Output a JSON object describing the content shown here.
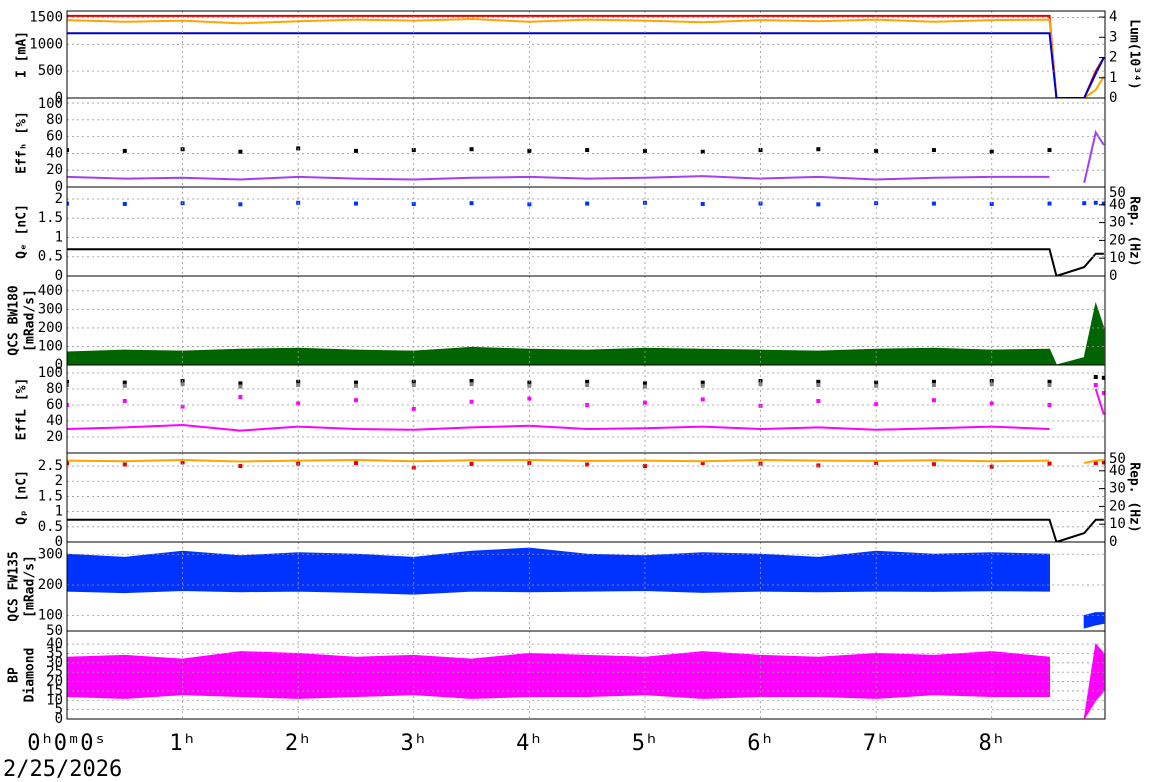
{
  "chart_data": [
    {
      "type": "line",
      "ylabel": [
        "I [mA]"
      ],
      "ylim": [
        0,
        1620
      ],
      "yticks": [
        0,
        500,
        1000,
        1500
      ],
      "y2label": [
        "Lum(10³⁴)"
      ],
      "y2lim": [
        0,
        4.3
      ],
      "y2ticks": [
        0,
        1,
        2,
        3,
        4
      ],
      "x": [
        0,
        0.5,
        1,
        1.5,
        2,
        2.5,
        3,
        3.5,
        4,
        4.5,
        5,
        5.5,
        6,
        6.5,
        7,
        7.5,
        8,
        8.5,
        8.56,
        8.8,
        8.9,
        8.97
      ],
      "series": [
        {
          "color": "#e00000",
          "style": "line",
          "values": [
            1530,
            1530,
            1530,
            1530,
            1530,
            1530,
            1530,
            1530,
            1530,
            1530,
            1530,
            1530,
            1530,
            1530,
            1530,
            1530,
            1530,
            1530,
            0,
            0,
            500,
            750
          ]
        },
        {
          "color": "#ffa500",
          "style": "line",
          "values": [
            1450,
            1420,
            1440,
            1390,
            1430,
            1460,
            1440,
            1470,
            1420,
            1460,
            1440,
            1410,
            1450,
            1430,
            1460,
            1420,
            1450,
            1460,
            0,
            0,
            150,
            400
          ]
        },
        {
          "color": "#0000cc",
          "style": "line",
          "axis": "y2",
          "values": [
            3.2,
            3.2,
            3.2,
            3.2,
            3.2,
            3.2,
            3.2,
            3.2,
            3.2,
            3.2,
            3.2,
            3.2,
            3.2,
            3.2,
            3.2,
            3.2,
            3.2,
            3.2,
            0,
            0,
            1.2,
            2.0
          ]
        }
      ]
    },
    {
      "type": "line",
      "ylabel": [
        "Effₕ [%]"
      ],
      "ylim": [
        0,
        106
      ],
      "yticks": [
        0,
        20,
        40,
        60,
        80,
        100
      ],
      "x": [
        0,
        0.5,
        1,
        1.5,
        2,
        2.5,
        3,
        3.5,
        4,
        4.5,
        5,
        5.5,
        6,
        6.5,
        7,
        7.5,
        8,
        8.5,
        8.56,
        8.8,
        8.9,
        8.97
      ],
      "series": [
        {
          "color": "#000000",
          "style": "dots",
          "values": [
            44,
            43,
            45,
            42,
            46,
            43,
            44,
            45,
            43,
            44,
            43,
            42,
            44,
            45,
            43,
            44,
            42,
            44,
            null,
            null,
            null,
            null
          ]
        },
        {
          "color": "#a040f0",
          "style": "line",
          "values": [
            12,
            10,
            11,
            9,
            12,
            10,
            9,
            11,
            12,
            10,
            11,
            13,
            10,
            12,
            9,
            11,
            12,
            12,
            null,
            5,
            65,
            50
          ]
        }
      ]
    },
    {
      "type": "line",
      "ylabel": [
        "Qₑ [nC]"
      ],
      "ylim": [
        0,
        2.31
      ],
      "yticks": [
        0,
        0.5,
        1,
        1.5,
        2
      ],
      "y2label": [
        "Rep. (Hz)"
      ],
      "y2lim": [
        0,
        50
      ],
      "y2ticks": [
        0,
        10,
        20,
        30,
        40,
        50
      ],
      "x": [
        0,
        0.5,
        1,
        1.5,
        2,
        2.5,
        3,
        3.5,
        4,
        4.5,
        5,
        5.5,
        6,
        6.5,
        7,
        7.5,
        8,
        8.5,
        8.56,
        8.8,
        8.9,
        8.97
      ],
      "series": [
        {
          "color": "#0033ff",
          "style": "dots",
          "values": [
            1.88,
            1.87,
            1.89,
            1.86,
            1.9,
            1.88,
            1.87,
            1.89,
            1.86,
            1.88,
            1.9,
            1.87,
            1.88,
            1.86,
            1.89,
            1.88,
            1.87,
            1.88,
            null,
            1.89,
            1.9,
            1.88
          ]
        },
        {
          "color": "#000000",
          "style": "line",
          "axis": "y2",
          "values": [
            15,
            15,
            15,
            15,
            15,
            15,
            15,
            15,
            15,
            15,
            15,
            15,
            15,
            15,
            15,
            15,
            15,
            15,
            0,
            5,
            12.5,
            12.5
          ]
        }
      ]
    },
    {
      "type": "line",
      "ylabel": [
        "QCS BW180",
        "[mRad/s]"
      ],
      "ylim": [
        0,
        480
      ],
      "yticks": [
        0,
        100,
        200,
        300,
        400
      ],
      "x": [
        0,
        0.5,
        1,
        1.5,
        2,
        2.5,
        3,
        3.5,
        4,
        4.5,
        5,
        5.5,
        6,
        6.5,
        7,
        7.5,
        8,
        8.5,
        8.56,
        8.8,
        8.9,
        8.97
      ],
      "series": [
        {
          "color": "#006400",
          "style": "area",
          "values": [
            70,
            80,
            75,
            85,
            90,
            80,
            75,
            95,
            85,
            80,
            90,
            85,
            80,
            75,
            85,
            90,
            80,
            85,
            0,
            40,
            330,
            200
          ]
        }
      ]
    },
    {
      "type": "line",
      "ylabel": [
        "EffL [%]"
      ],
      "ylim": [
        0,
        110
      ],
      "yticks": [
        20,
        40,
        60,
        80,
        100
      ],
      "x": [
        0,
        0.5,
        1,
        1.5,
        2,
        2.5,
        3,
        3.5,
        4,
        4.5,
        5,
        5.5,
        6,
        6.5,
        7,
        7.5,
        8,
        8.5,
        8.56,
        8.8,
        8.9,
        8.97
      ],
      "series": [
        {
          "color": "#000000",
          "style": "dots",
          "values": [
            89,
            88,
            90,
            87,
            89,
            88,
            89,
            90,
            88,
            89,
            87,
            88,
            90,
            89,
            88,
            89,
            90,
            89,
            null,
            null,
            95,
            94
          ]
        },
        {
          "color": "#808080",
          "style": "dots",
          "values": [
            85,
            84,
            86,
            83,
            85,
            84,
            85,
            86,
            84,
            85,
            83,
            84,
            86,
            85,
            84,
            85,
            86,
            85,
            null,
            null,
            null,
            null
          ]
        },
        {
          "color": "#ff00ff",
          "style": "dots",
          "values": [
            60,
            65,
            58,
            70,
            62,
            66,
            55,
            64,
            68,
            60,
            63,
            67,
            59,
            65,
            61,
            66,
            62,
            60,
            null,
            null,
            85,
            75
          ]
        },
        {
          "color": "#ff00ff",
          "style": "line",
          "values": [
            30,
            32,
            35,
            28,
            33,
            30,
            29,
            32,
            34,
            30,
            31,
            33,
            30,
            32,
            29,
            31,
            33,
            30,
            null,
            null,
            80,
            48
          ]
        }
      ]
    },
    {
      "type": "line",
      "ylabel": [
        "Qₚ [nC]"
      ],
      "ylim": [
        0,
        2.93
      ],
      "yticks": [
        0,
        0.5,
        1,
        1.5,
        2,
        2.5
      ],
      "y2label": [
        "Rep. (Hz)"
      ],
      "y2lim": [
        0,
        50
      ],
      "y2ticks": [
        0,
        10,
        20,
        30,
        40,
        50
      ],
      "x": [
        0,
        0.5,
        1,
        1.5,
        2,
        2.5,
        3,
        3.5,
        4,
        4.5,
        5,
        5.5,
        6,
        6.5,
        7,
        7.5,
        8,
        8.5,
        8.56,
        8.8,
        8.9,
        8.97
      ],
      "series": [
        {
          "color": "#e00000",
          "style": "dots",
          "values": [
            2.6,
            2.55,
            2.62,
            2.5,
            2.58,
            2.6,
            2.45,
            2.57,
            2.6,
            2.55,
            2.5,
            2.6,
            2.58,
            2.52,
            2.6,
            2.56,
            2.48,
            2.58,
            null,
            null,
            2.6,
            2.62
          ]
        },
        {
          "color": "#ffa500",
          "style": "line",
          "values": [
            2.68,
            2.66,
            2.7,
            2.65,
            2.68,
            2.7,
            2.66,
            2.69,
            2.7,
            2.67,
            2.68,
            2.66,
            2.7,
            2.68,
            2.67,
            2.69,
            2.66,
            2.68,
            null,
            2.6,
            2.68,
            2.7
          ]
        },
        {
          "color": "#000000",
          "style": "line",
          "axis": "y2",
          "values": [
            12.5,
            12.5,
            12.5,
            12.5,
            12.5,
            12.5,
            12.5,
            12.5,
            12.5,
            12.5,
            12.5,
            12.5,
            12.5,
            12.5,
            12.5,
            12.5,
            12.5,
            12.5,
            0,
            5,
            12.5,
            12.5
          ]
        }
      ]
    },
    {
      "type": "line",
      "ylabel": [
        "QCS FW135",
        "[mRad/s]"
      ],
      "ylim": [
        50,
        340
      ],
      "yticks": [
        50,
        100,
        200,
        300
      ],
      "x": [
        0,
        0.5,
        1,
        1.5,
        2,
        2.5,
        3,
        3.5,
        4,
        4.5,
        5,
        5.5,
        6,
        6.5,
        7,
        7.5,
        8,
        8.5,
        8.56,
        8.8,
        8.9,
        8.97
      ],
      "series": [
        {
          "color": "#0033ff",
          "style": "band",
          "values": [
            300,
            290,
            310,
            295,
            305,
            300,
            290,
            310,
            320,
            300,
            295,
            305,
            300,
            290,
            310,
            300,
            305,
            300,
            null,
            100,
            110,
            110
          ],
          "lows": [
            180,
            175,
            182,
            178,
            180,
            176,
            170,
            180,
            178,
            180,
            182,
            176,
            180,
            178,
            180,
            179,
            181,
            180,
            null,
            60,
            70,
            75
          ]
        }
      ]
    },
    {
      "type": "line",
      "ylabel": [
        "BP",
        "Diamond"
      ],
      "ylim": [
        0,
        47
      ],
      "yticks": [
        0,
        5,
        10,
        15,
        20,
        25,
        30,
        35,
        40
      ],
      "x": [
        0,
        0.5,
        1,
        1.5,
        2,
        2.5,
        3,
        3.5,
        4,
        4.5,
        5,
        5.5,
        6,
        6.5,
        7,
        7.5,
        8,
        8.5,
        8.56,
        8.8,
        8.9,
        8.97
      ],
      "series": [
        {
          "color": "#ff00ff",
          "style": "band",
          "values": [
            33,
            34,
            32,
            36,
            35,
            33,
            34,
            32,
            35,
            34,
            33,
            36,
            34,
            33,
            35,
            34,
            36,
            33,
            null,
            0,
            40,
            35
          ],
          "lows": [
            12,
            11,
            13,
            12,
            11,
            12,
            13,
            11,
            12,
            12,
            13,
            11,
            12,
            12,
            11,
            13,
            12,
            12,
            null,
            0,
            10,
            15
          ]
        }
      ],
      "xlim": [
        0,
        8.98
      ],
      "xticks": [
        {
          "value": 0,
          "label": "0ʰ0ᵐ0ˢ"
        },
        {
          "value": 1,
          "label": "1ʰ"
        },
        {
          "value": 2,
          "label": "2ʰ"
        },
        {
          "value": 3,
          "label": "3ʰ"
        },
        {
          "value": 4,
          "label": "4ʰ"
        },
        {
          "value": 5,
          "label": "5ʰ"
        },
        {
          "value": 6,
          "label": "6ʰ"
        },
        {
          "value": 7,
          "label": "7ʰ"
        },
        {
          "value": 8,
          "label": "8ʰ"
        }
      ],
      "date": "2/25/2026"
    }
  ]
}
